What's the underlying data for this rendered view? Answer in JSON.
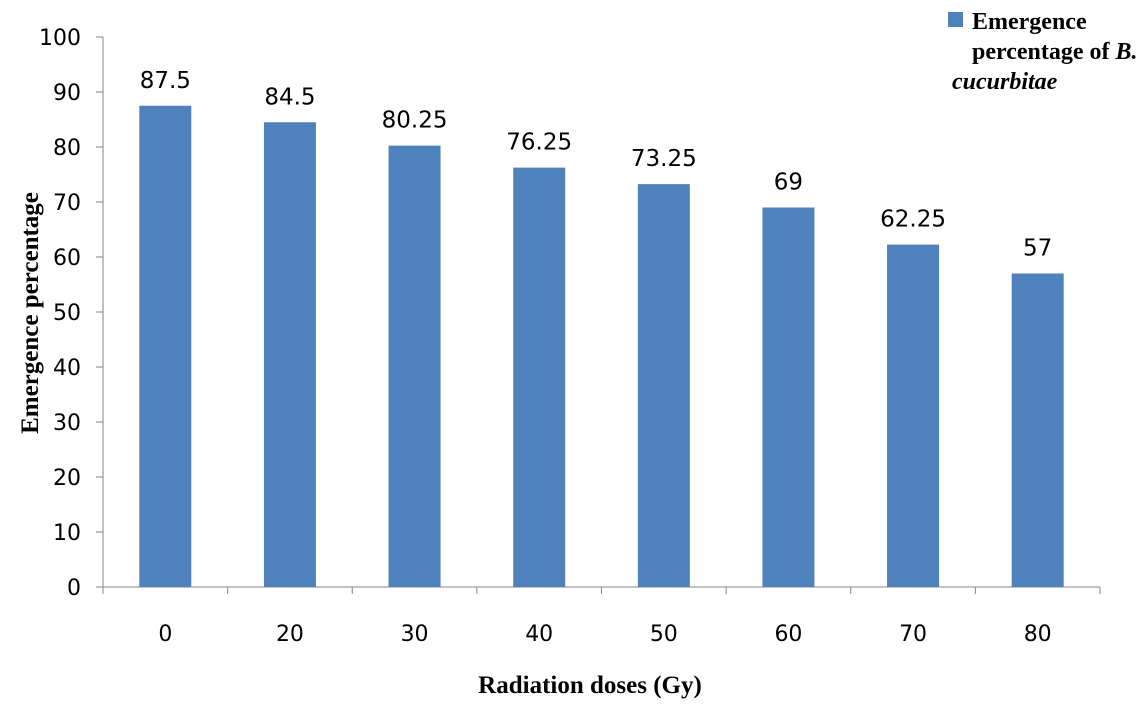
{
  "chart_data": {
    "type": "bar",
    "categories": [
      "0",
      "20",
      "30",
      "40",
      "50",
      "60",
      "70",
      "80"
    ],
    "series": [
      {
        "name": "Emergence percentage of B. cucurbitae",
        "values": [
          87.5,
          84.5,
          80.25,
          76.25,
          73.25,
          69,
          62.25,
          57
        ],
        "value_labels": [
          "87.5",
          "84.5",
          "80.25",
          "76.25",
          "73.25",
          "69",
          "62.25",
          "57"
        ],
        "color": "#4f81bd"
      }
    ],
    "xlabel": "Radiation doses (Gy)",
    "ylabel": "Emergence percentage",
    "ylim": [
      0,
      100
    ],
    "yticks": [
      0,
      10,
      20,
      30,
      40,
      50,
      60,
      70,
      80,
      90,
      100
    ],
    "grid": false,
    "legend": {
      "position": "top-right",
      "lines": [
        [
          {
            "text": "Emergence",
            "italic": false
          }
        ],
        [
          {
            "text": "percentage of ",
            "italic": false
          },
          {
            "text": "B.",
            "italic": true
          }
        ],
        [
          {
            "text": "cucurbitae",
            "italic": true
          }
        ]
      ]
    }
  }
}
